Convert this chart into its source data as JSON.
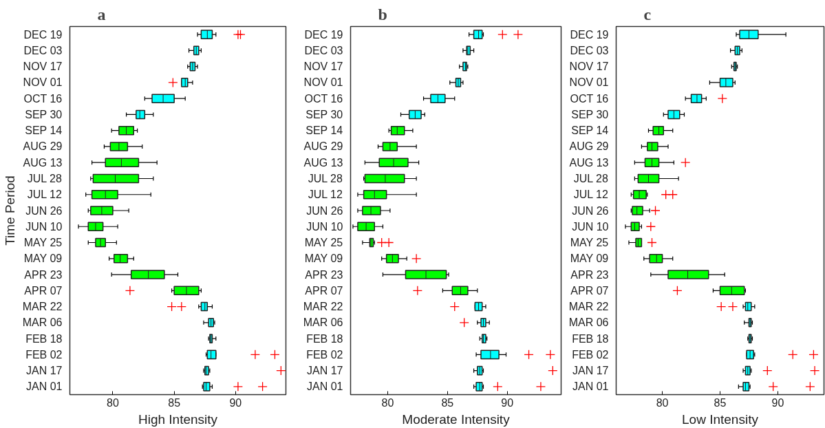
{
  "chart_data": [
    {
      "type": "box",
      "title": "a",
      "xlabel": "High Intensity",
      "ylabel": "Time Period",
      "orientation": "horizontal",
      "grid": false,
      "categories": [
        "DEC 19",
        "DEC 03",
        "NOV 17",
        "NOV 01",
        "OCT 16",
        "SEP 30",
        "SEP 14",
        "AUG 29",
        "AUG 13",
        "JUL 28",
        "JUL 12",
        "JUN 26",
        "JUN 10",
        "MAY 25",
        "MAY 09",
        "APR 23",
        "APR 07",
        "MAR 22",
        "MAR 06",
        "FEB 18",
        "FEB 02",
        "JAN 17",
        "JAN 01"
      ],
      "colors": [
        "#00ffff",
        "#00ffff",
        "#00ffff",
        "#00ffff",
        "#00ffff",
        "#00ffff",
        "#00ff00",
        "#00ff00",
        "#00ff00",
        "#00ff00",
        "#00ff00",
        "#00ff00",
        "#00ff00",
        "#00ff00",
        "#00ff00",
        "#00ff00",
        "#00ff00",
        "#00ffff",
        "#00ffff",
        "#00ffff",
        "#00ffff",
        "#00ffff",
        "#00ffff"
      ],
      "xlim": [
        76.5,
        94.1
      ],
      "xticks": [
        80,
        85,
        90
      ],
      "boxes": [
        {
          "low": 86.9,
          "q1": 87.2,
          "median": 87.7,
          "q3": 88.1,
          "high": 88.4,
          "outliers": [
            90.2,
            90.4
          ]
        },
        {
          "low": 86.2,
          "q1": 86.6,
          "median": 86.8,
          "q3": 87.0,
          "high": 87.2
        },
        {
          "low": 86.1,
          "q1": 86.3,
          "median": 86.5,
          "q3": 86.7,
          "high": 86.9
        },
        {
          "low": 85.6,
          "q1": 85.6,
          "median": 85.9,
          "q3": 86.1,
          "high": 86.5,
          "outliers": [
            84.9
          ]
        },
        {
          "low": 82.6,
          "q1": 83.2,
          "median": 84.1,
          "q3": 85.0,
          "high": 85.9
        },
        {
          "low": 81.1,
          "q1": 81.9,
          "median": 82.2,
          "q3": 82.6,
          "high": 83.3
        },
        {
          "low": 79.9,
          "q1": 80.5,
          "median": 81.1,
          "q3": 81.7,
          "high": 82.0
        },
        {
          "low": 79.3,
          "q1": 79.8,
          "median": 80.5,
          "q3": 81.2,
          "high": 82.4
        },
        {
          "low": 78.3,
          "q1": 79.4,
          "median": 80.7,
          "q3": 82.1,
          "high": 83.6
        },
        {
          "low": 78.2,
          "q1": 78.4,
          "median": 80.2,
          "q3": 82.1,
          "high": 83.3
        },
        {
          "low": 77.8,
          "q1": 78.3,
          "median": 79.4,
          "q3": 80.4,
          "high": 83.1
        },
        {
          "low": 78.0,
          "q1": 78.2,
          "median": 79.1,
          "q3": 80.0,
          "high": 81.3
        },
        {
          "low": 77.2,
          "q1": 78.0,
          "median": 78.6,
          "q3": 79.2,
          "high": 80.4
        },
        {
          "low": 78.0,
          "q1": 78.6,
          "median": 79.0,
          "q3": 79.4,
          "high": 80.3
        },
        {
          "low": 79.7,
          "q1": 80.1,
          "median": 80.6,
          "q3": 81.2,
          "high": 81.7
        },
        {
          "low": 79.9,
          "q1": 81.5,
          "median": 82.9,
          "q3": 84.2,
          "high": 85.3
        },
        {
          "low": 84.8,
          "q1": 85.0,
          "median": 86.0,
          "q3": 87.0,
          "high": 87.2,
          "outliers": [
            81.4
          ]
        },
        {
          "low": 87.0,
          "q1": 87.2,
          "median": 87.5,
          "q3": 87.7,
          "high": 88.1,
          "outliers": [
            84.8,
            85.6
          ]
        },
        {
          "low": 87.4,
          "q1": 87.8,
          "median": 88.0,
          "q3": 88.2,
          "high": 88.3
        },
        {
          "low": 87.8,
          "q1": 87.9,
          "median": 88.0,
          "q3": 88.1,
          "high": 88.4
        },
        {
          "low": 87.6,
          "q1": 87.7,
          "median": 88.0,
          "q3": 88.4,
          "high": 88.4,
          "outliers": [
            91.6,
            93.2
          ]
        },
        {
          "low": 87.4,
          "q1": 87.5,
          "median": 87.6,
          "q3": 87.8,
          "high": 87.9,
          "outliers": [
            93.7
          ]
        },
        {
          "low": 87.3,
          "q1": 87.4,
          "median": 87.6,
          "q3": 87.9,
          "high": 88.1,
          "outliers": [
            90.2,
            92.2
          ]
        }
      ]
    },
    {
      "type": "box",
      "title": "b",
      "xlabel": "Moderate Intensity",
      "orientation": "horizontal",
      "grid": false,
      "categories": [
        "DEC 19",
        "DEC 03",
        "NOV 17",
        "NOV 01",
        "OCT 16",
        "SEP 30",
        "SEP 14",
        "AUG 29",
        "AUG 13",
        "JUL 28",
        "JUL 12",
        "JUN 26",
        "JUN 10",
        "MAY 25",
        "MAY 09",
        "APR 23",
        "APR 07",
        "MAR 22",
        "MAR 06",
        "FEB 18",
        "FEB 02",
        "JAN 17",
        "JAN 01"
      ],
      "colors": [
        "#00ffff",
        "#00ffff",
        "#00ffff",
        "#00ffff",
        "#00ffff",
        "#00ffff",
        "#00ff00",
        "#00ff00",
        "#00ff00",
        "#00ff00",
        "#00ff00",
        "#00ff00",
        "#00ff00",
        "#00ff00",
        "#00ff00",
        "#00ff00",
        "#00ff00",
        "#00ffff",
        "#00ffff",
        "#00ffff",
        "#00ffff",
        "#00ffff",
        "#00ffff"
      ],
      "xlim": [
        76.9,
        94.5
      ],
      "xticks": [
        80,
        85,
        90
      ],
      "boxes": [
        {
          "low": 86.8,
          "q1": 87.2,
          "median": 87.6,
          "q3": 87.9,
          "high": 88.0,
          "outliers": [
            89.6,
            90.9
          ]
        },
        {
          "low": 86.3,
          "q1": 86.6,
          "median": 86.7,
          "q3": 86.9,
          "high": 87.2
        },
        {
          "low": 86.0,
          "q1": 86.3,
          "median": 86.5,
          "q3": 86.6,
          "high": 86.7
        },
        {
          "low": 85.2,
          "q1": 85.7,
          "median": 85.9,
          "q3": 86.1,
          "high": 86.3
        },
        {
          "low": 83.0,
          "q1": 83.6,
          "median": 84.2,
          "q3": 84.8,
          "high": 85.6
        },
        {
          "low": 81.1,
          "q1": 81.8,
          "median": 82.3,
          "q3": 82.8,
          "high": 83.1
        },
        {
          "low": 80.1,
          "q1": 80.3,
          "median": 80.8,
          "q3": 81.4,
          "high": 82.1
        },
        {
          "low": 79.2,
          "q1": 79.6,
          "median": 80.2,
          "q3": 80.8,
          "high": 82.4
        },
        {
          "low": 78.1,
          "q1": 79.3,
          "median": 80.5,
          "q3": 81.7,
          "high": 82.6
        },
        {
          "low": 78.0,
          "q1": 78.1,
          "median": 79.8,
          "q3": 81.4,
          "high": 82.4
        },
        {
          "low": 77.5,
          "q1": 78.0,
          "median": 78.9,
          "q3": 79.9,
          "high": 82.4
        },
        {
          "low": 77.5,
          "q1": 77.9,
          "median": 78.6,
          "q3": 79.4,
          "high": 80.2
        },
        {
          "low": 77.1,
          "q1": 77.5,
          "median": 78.2,
          "q3": 78.9,
          "high": 79.6
        },
        {
          "low": 77.9,
          "q1": 78.5,
          "median": 78.6,
          "q3": 78.8,
          "high": 78.9,
          "outliers": [
            79.5,
            80.1
          ]
        },
        {
          "low": 79.5,
          "q1": 79.9,
          "median": 80.4,
          "q3": 80.9,
          "high": 81.6,
          "outliers": [
            82.4
          ]
        },
        {
          "low": 79.6,
          "q1": 81.5,
          "median": 83.2,
          "q3": 84.9,
          "high": 85.1
        },
        {
          "low": 84.6,
          "q1": 85.4,
          "median": 86.1,
          "q3": 86.7,
          "high": 87.5,
          "outliers": [
            82.5
          ]
        },
        {
          "low": 87.3,
          "q1": 87.3,
          "median": 87.6,
          "q3": 87.9,
          "high": 88.2,
          "outliers": [
            85.6
          ]
        },
        {
          "low": 87.5,
          "q1": 87.8,
          "median": 88.0,
          "q3": 88.2,
          "high": 88.5,
          "outliers": [
            86.4
          ]
        },
        {
          "low": 87.7,
          "q1": 87.9,
          "median": 88.0,
          "q3": 88.2,
          "high": 88.3
        },
        {
          "low": 87.4,
          "q1": 87.8,
          "median": 88.6,
          "q3": 89.3,
          "high": 89.9,
          "outliers": [
            91.8,
            93.6
          ]
        },
        {
          "low": 87.2,
          "q1": 87.5,
          "median": 87.7,
          "q3": 87.9,
          "high": 88.0,
          "outliers": [
            93.8
          ]
        },
        {
          "low": 87.2,
          "q1": 87.4,
          "median": 87.7,
          "q3": 87.9,
          "high": 88.0,
          "outliers": [
            89.2,
            92.8
          ]
        }
      ]
    },
    {
      "type": "box",
      "title": "c",
      "xlabel": "Low Intensity",
      "orientation": "horizontal",
      "grid": false,
      "categories": [
        "DEC 19",
        "DEC 03",
        "NOV 17",
        "NOV 01",
        "OCT 16",
        "SEP 30",
        "SEP 14",
        "AUG 29",
        "AUG 13",
        "JUL 28",
        "JUL 12",
        "JUN 26",
        "JUN 10",
        "MAY 25",
        "MAY 09",
        "APR 23",
        "APR 07",
        "MAR 22",
        "MAR 06",
        "FEB 18",
        "FEB 02",
        "JAN 17",
        "JAN 01"
      ],
      "colors": [
        "#00ffff",
        "#00ffff",
        "#00ffff",
        "#00ffff",
        "#00ffff",
        "#00ffff",
        "#00ff00",
        "#00ff00",
        "#00ff00",
        "#00ff00",
        "#00ff00",
        "#00ff00",
        "#00ff00",
        "#00ff00",
        "#00ff00",
        "#00ff00",
        "#00ff00",
        "#00ffff",
        "#00ffff",
        "#00ffff",
        "#00ffff",
        "#00ffff",
        "#00ffff"
      ],
      "xlim": [
        76.0,
        94.0
      ],
      "xticks": [
        80,
        85,
        90
      ],
      "boxes": [
        {
          "low": 86.4,
          "q1": 86.7,
          "median": 87.5,
          "q3": 88.3,
          "high": 90.7
        },
        {
          "low": 85.9,
          "q1": 86.3,
          "median": 86.5,
          "q3": 86.7,
          "high": 86.9
        },
        {
          "low": 86.0,
          "q1": 86.2,
          "median": 86.3,
          "q3": 86.4,
          "high": 86.5
        },
        {
          "low": 84.1,
          "q1": 85.0,
          "median": 85.5,
          "q3": 86.1,
          "high": 86.3
        },
        {
          "low": 82.0,
          "q1": 82.5,
          "median": 83.0,
          "q3": 83.4,
          "high": 83.8,
          "outliers": [
            85.2
          ]
        },
        {
          "low": 80.1,
          "q1": 80.5,
          "median": 81.0,
          "q3": 81.5,
          "high": 81.9
        },
        {
          "low": 78.8,
          "q1": 79.2,
          "median": 79.7,
          "q3": 80.1,
          "high": 80.9
        },
        {
          "low": 78.2,
          "q1": 78.7,
          "median": 79.1,
          "q3": 79.6,
          "high": 80.5
        },
        {
          "low": 77.6,
          "q1": 78.5,
          "median": 79.1,
          "q3": 79.7,
          "high": 81.0,
          "outliers": [
            82.0
          ]
        },
        {
          "low": 77.6,
          "q1": 77.9,
          "median": 78.8,
          "q3": 79.7,
          "high": 81.4
        },
        {
          "low": 77.3,
          "q1": 77.5,
          "median": 78.0,
          "q3": 78.6,
          "high": 78.7,
          "outliers": [
            80.3,
            80.9
          ]
        },
        {
          "low": 77.3,
          "q1": 77.4,
          "median": 77.8,
          "q3": 78.3,
          "high": 78.9,
          "outliers": [
            79.4
          ]
        },
        {
          "low": 76.8,
          "q1": 77.3,
          "median": 77.6,
          "q3": 78.0,
          "high": 78.2,
          "outliers": [
            79.0
          ]
        },
        {
          "low": 77.1,
          "q1": 77.7,
          "median": 77.9,
          "q3": 78.2,
          "high": 78.2,
          "outliers": [
            79.1
          ]
        },
        {
          "low": 78.4,
          "q1": 78.9,
          "median": 79.5,
          "q3": 80.0,
          "high": 80.9
        },
        {
          "low": 79.0,
          "q1": 80.5,
          "median": 82.2,
          "q3": 84.0,
          "high": 85.4
        },
        {
          "low": 84.4,
          "q1": 85.0,
          "median": 86.0,
          "q3": 87.1,
          "high": 87.2,
          "outliers": [
            81.3
          ]
        },
        {
          "low": 87.0,
          "q1": 87.2,
          "median": 87.4,
          "q3": 87.7,
          "high": 88.0,
          "outliers": [
            85.1,
            86.1
          ]
        },
        {
          "low": 87.1,
          "q1": 87.5,
          "median": 87.6,
          "q3": 87.7,
          "high": 87.8
        },
        {
          "low": 87.4,
          "q1": 87.5,
          "median": 87.6,
          "q3": 87.7,
          "high": 87.8
        },
        {
          "low": 87.3,
          "q1": 87.3,
          "median": 87.6,
          "q3": 87.9,
          "high": 88.0,
          "outliers": [
            91.3,
            93.1
          ]
        },
        {
          "low": 87.0,
          "q1": 87.2,
          "median": 87.4,
          "q3": 87.6,
          "high": 87.7,
          "outliers": [
            89.1,
            93.2
          ]
        },
        {
          "low": 86.6,
          "q1": 87.0,
          "median": 87.2,
          "q3": 87.5,
          "high": 87.6,
          "outliers": [
            89.6,
            92.8
          ]
        }
      ]
    }
  ]
}
